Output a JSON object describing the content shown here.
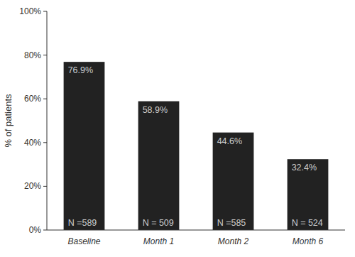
{
  "chart_data": {
    "type": "bar",
    "categories": [
      "Baseline",
      "Month 1",
      "Month 2",
      "Month 6"
    ],
    "values": [
      76.9,
      58.9,
      44.6,
      32.4
    ],
    "value_labels": [
      "76.9%",
      "58.9%",
      "44.6%",
      "32.4%"
    ],
    "data_labels": true,
    "annotations": [
      "N =589",
      "N = 509",
      "N =585",
      "N = 524"
    ],
    "color": "#222222",
    "ylabel": "% of patients",
    "ylim": [
      0,
      100
    ],
    "yticks": [
      {
        "value": 0,
        "label": "0%"
      },
      {
        "value": 20,
        "label": "20%"
      },
      {
        "value": 40,
        "label": "40%"
      },
      {
        "value": 60,
        "label": "60%"
      },
      {
        "value": 80,
        "label": "80%"
      },
      {
        "value": 100,
        "label": "100%"
      }
    ],
    "grid": false
  }
}
